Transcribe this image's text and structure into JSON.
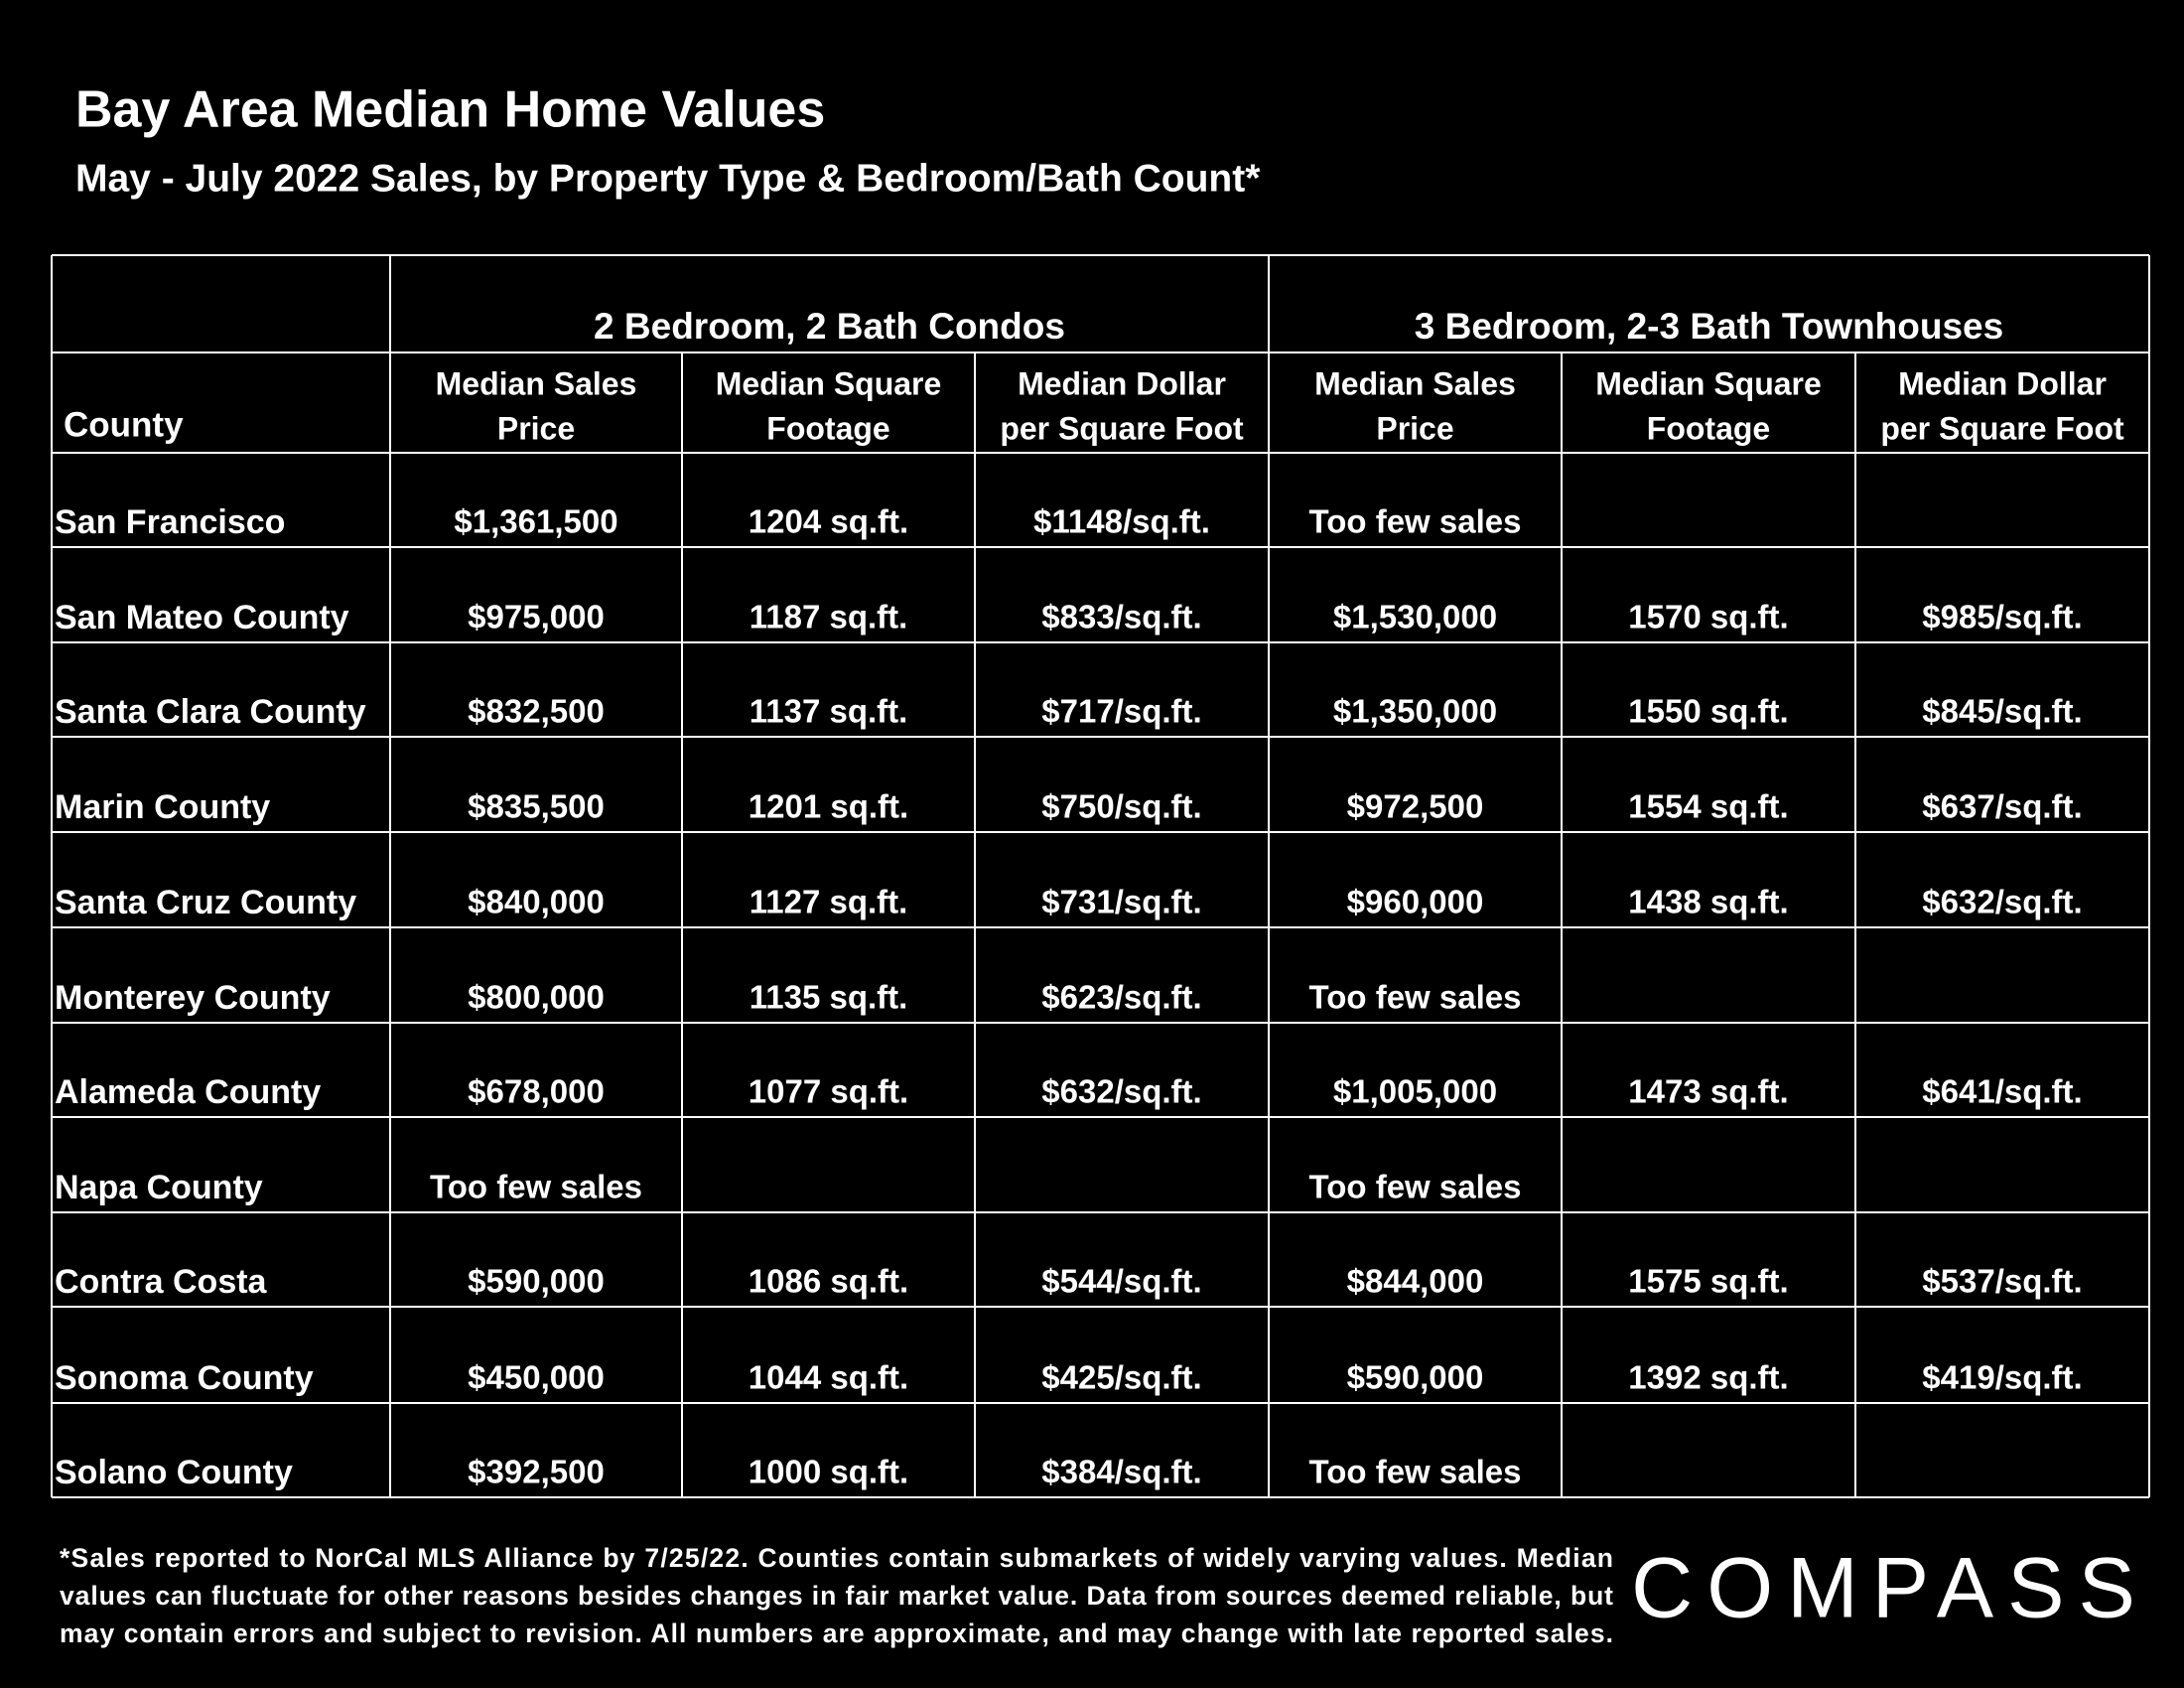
{
  "header": {
    "title": "Bay Area Median Home Values",
    "subtitle": "May - July 2022 Sales, by Property Type & Bedroom/Bath Count*"
  },
  "table": {
    "group_headers": [
      "2 Bedroom, 2 Bath Condos",
      "3 Bedroom, 2-3 Bath Townhouses"
    ],
    "column_headers": [
      [
        "County"
      ],
      [
        "Median Sales",
        "Price"
      ],
      [
        "Median Square",
        "Footage"
      ],
      [
        "Median Dollar",
        "per Square Foot"
      ],
      [
        "Median Sales",
        "Price"
      ],
      [
        "Median Square",
        "Footage"
      ],
      [
        "Median Dollar",
        "per Square Foot"
      ]
    ],
    "rows": [
      [
        "San Francisco",
        "$1,361,500",
        "1204 sq.ft.",
        "$1148/sq.ft.",
        "Too few sales",
        null,
        null
      ],
      [
        "San Mateo County",
        "$975,000",
        "1187 sq.ft.",
        "$833/sq.ft.",
        "$1,530,000",
        "1570 sq.ft.",
        "$985/sq.ft."
      ],
      [
        "Santa Clara County",
        "$832,500",
        "1137 sq.ft.",
        "$717/sq.ft.",
        "$1,350,000",
        "1550 sq.ft.",
        "$845/sq.ft."
      ],
      [
        "Marin County",
        "$835,500",
        "1201 sq.ft.",
        "$750/sq.ft.",
        "$972,500",
        "1554 sq.ft.",
        "$637/sq.ft."
      ],
      [
        "Santa Cruz County",
        "$840,000",
        "1127 sq.ft.",
        "$731/sq.ft.",
        "$960,000",
        "1438 sq.ft.",
        "$632/sq.ft."
      ],
      [
        "Monterey County",
        "$800,000",
        "1135 sq.ft.",
        "$623/sq.ft.",
        "Too few sales",
        null,
        null
      ],
      [
        "Alameda County",
        "$678,000",
        "1077 sq.ft.",
        "$632/sq.ft.",
        "$1,005,000",
        "1473 sq.ft.",
        "$641/sq.ft."
      ],
      [
        "Napa County",
        "Too few sales",
        null,
        null,
        "Too few sales",
        null,
        null
      ],
      [
        "Contra Costa",
        "$590,000",
        "1086 sq.ft.",
        "$544/sq.ft.",
        "$844,000",
        "1575 sq.ft.",
        "$537/sq.ft."
      ],
      [
        "Sonoma County",
        "$450,000",
        "1044 sq.ft.",
        "$425/sq.ft.",
        "$590,000",
        "1392 sq.ft.",
        "$419/sq.ft."
      ],
      [
        "Solano County",
        "$392,500",
        "1000 sq.ft.",
        "$384/sq.ft.",
        "Too few sales",
        null,
        null
      ]
    ]
  },
  "footnote": [
    "*Sales reported to NorCal MLS Alliance by 7/25/22. Counties contain submarkets of widely varying values. Median",
    "values can fluctuate for other reasons besides changes in fair market value. Data from sources deemed reliable, but",
    "may contain errors and subject to revision.  All numbers are approximate, and may change with late reported sales."
  ],
  "logo": "COMPASS"
}
